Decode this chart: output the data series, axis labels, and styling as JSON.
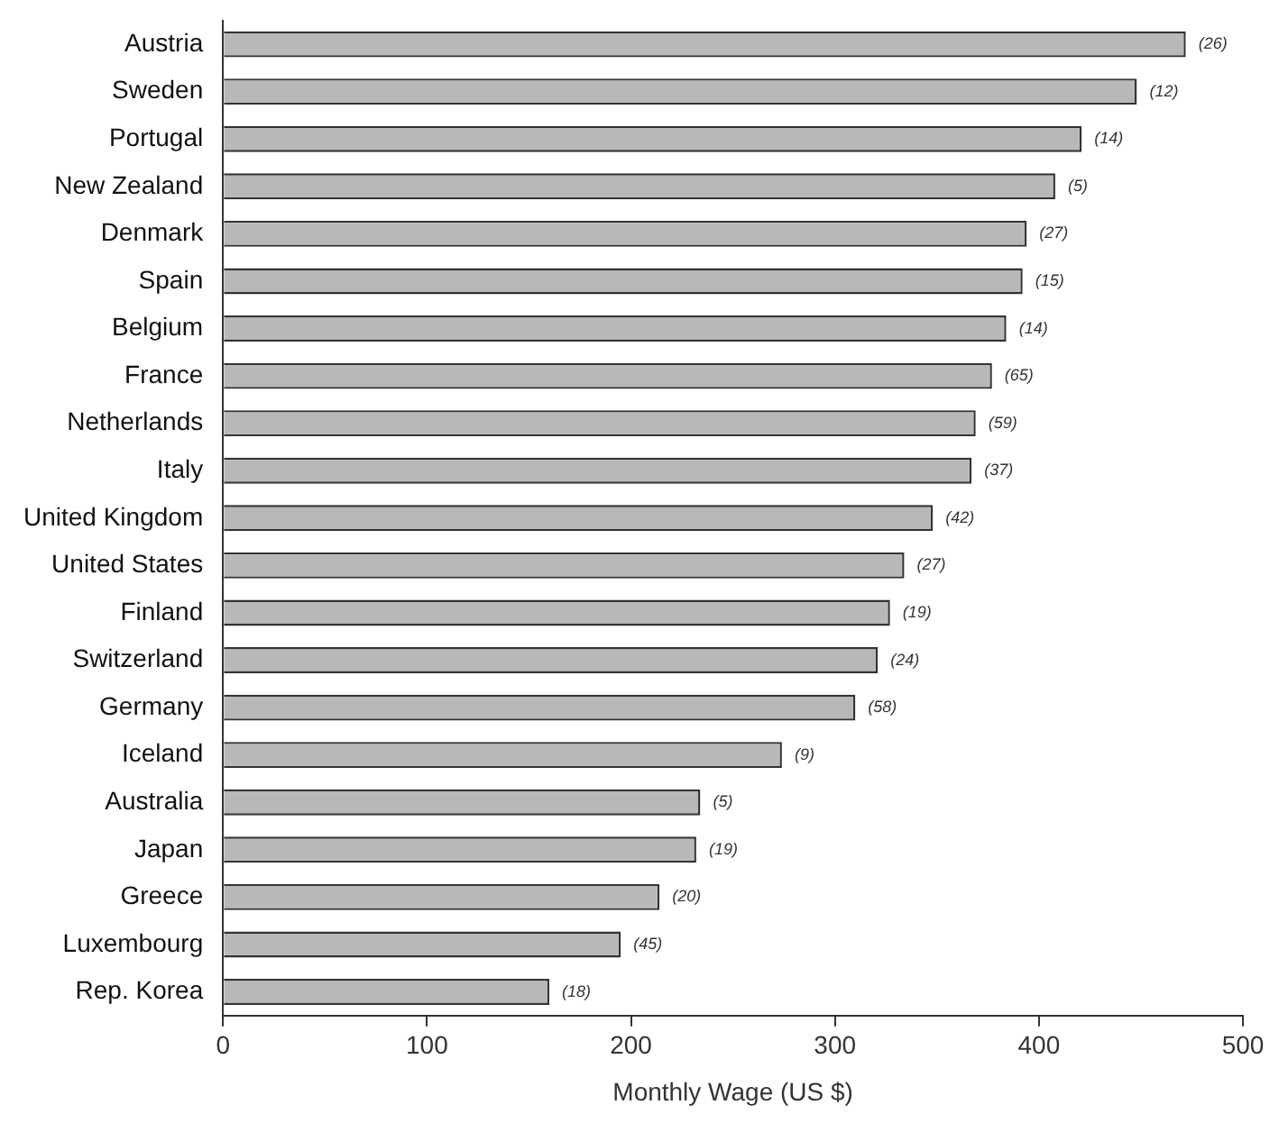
{
  "chart_data": {
    "type": "bar",
    "orientation": "horizontal",
    "xlabel": "Monthly Wage (US $)",
    "categories": [
      "Austria",
      "Sweden",
      "Portugal",
      "New Zealand",
      "Denmark",
      "Spain",
      "Belgium",
      "France",
      "Netherlands",
      "Italy",
      "United Kingdom",
      "United States",
      "Finland",
      "Switzerland",
      "Germany",
      "Iceland",
      "Australia",
      "Japan",
      "Greece",
      "Luxembourg",
      "Rep. Korea"
    ],
    "values": [
      472,
      448,
      421,
      408,
      394,
      392,
      384,
      377,
      369,
      367,
      348,
      334,
      327,
      321,
      310,
      274,
      234,
      232,
      214,
      195,
      160
    ],
    "color": "#b8b8b8",
    "xlim": [
      0,
      500
    ],
    "xticks": [
      0,
      100,
      200,
      300,
      400,
      500
    ],
    "grid": false,
    "legend": false,
    "annotations": [
      {
        "text": "(26)",
        "x": 472,
        "y": "Austria"
      },
      {
        "text": "(12)",
        "x": 448,
        "y": "Sweden"
      },
      {
        "text": "(14)",
        "x": 421,
        "y": "Portugal"
      },
      {
        "text": "(5)",
        "x": 408,
        "y": "New Zealand"
      },
      {
        "text": "(27)",
        "x": 394,
        "y": "Denmark"
      },
      {
        "text": "(15)",
        "x": 392,
        "y": "Spain"
      },
      {
        "text": "(14)",
        "x": 384,
        "y": "Belgium"
      },
      {
        "text": "(65)",
        "x": 377,
        "y": "France"
      },
      {
        "text": "(59)",
        "x": 369,
        "y": "Netherlands"
      },
      {
        "text": "(37)",
        "x": 367,
        "y": "Italy"
      },
      {
        "text": "(42)",
        "x": 348,
        "y": "United Kingdom"
      },
      {
        "text": "(27)",
        "x": 334,
        "y": "United States"
      },
      {
        "text": "(19)",
        "x": 327,
        "y": "Finland"
      },
      {
        "text": "(24)",
        "x": 321,
        "y": "Switzerland"
      },
      {
        "text": "(58)",
        "x": 310,
        "y": "Germany"
      },
      {
        "text": "(9)",
        "x": 274,
        "y": "Iceland"
      },
      {
        "text": "(5)",
        "x": 234,
        "y": "Australia"
      },
      {
        "text": "(19)",
        "x": 232,
        "y": "Japan"
      },
      {
        "text": "(20)",
        "x": 214,
        "y": "Greece"
      },
      {
        "text": "(45)",
        "x": 195,
        "y": "Luxembourg"
      },
      {
        "text": "(18)",
        "x": 160,
        "y": "Rep. Korea"
      }
    ]
  }
}
